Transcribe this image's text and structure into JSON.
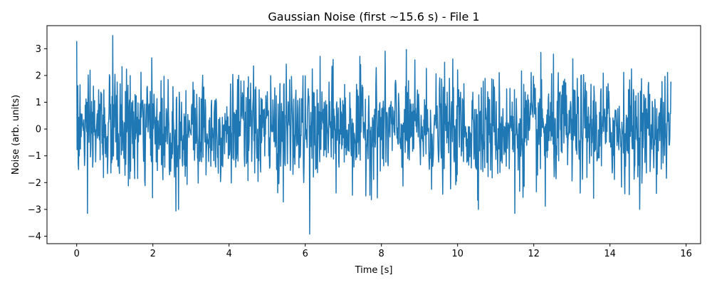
{
  "chart_data": {
    "type": "line",
    "title": "Gaussian Noise (first ~15.6 s) - File 1",
    "xlabel": "Time [s]",
    "ylabel": "Noise (arb. units)",
    "xlim": [
      -0.78,
      16.38
    ],
    "ylim": [
      -4.28,
      3.86
    ],
    "xticks": [
      0,
      2,
      4,
      6,
      8,
      10,
      12,
      14,
      16
    ],
    "xtick_labels": [
      "0",
      "2",
      "4",
      "6",
      "8",
      "10",
      "12",
      "14",
      "16"
    ],
    "yticks": [
      -4,
      -3,
      -2,
      -1,
      0,
      1,
      2,
      3
    ],
    "ytick_labels": [
      "−4",
      "−3",
      "−2",
      "−1",
      "0",
      "1",
      "2",
      "3"
    ],
    "grid": false,
    "legend": "none",
    "x_range": [
      0,
      15.6
    ],
    "n_points": 1600,
    "distribution": "gaussian",
    "mean": 0,
    "std": 1,
    "notable_points": [
      {
        "x": 0.0,
        "y": 3.28
      },
      {
        "x": 0.28,
        "y": -3.15
      },
      {
        "x": 0.95,
        "y": 3.49
      },
      {
        "x": 2.6,
        "y": -3.06
      },
      {
        "x": 6.12,
        "y": -3.92
      },
      {
        "x": 11.5,
        "y": -3.15
      },
      {
        "x": 12.3,
        "y": -2.88
      }
    ],
    "series": [
      {
        "color": "#1f77b4"
      }
    ]
  }
}
